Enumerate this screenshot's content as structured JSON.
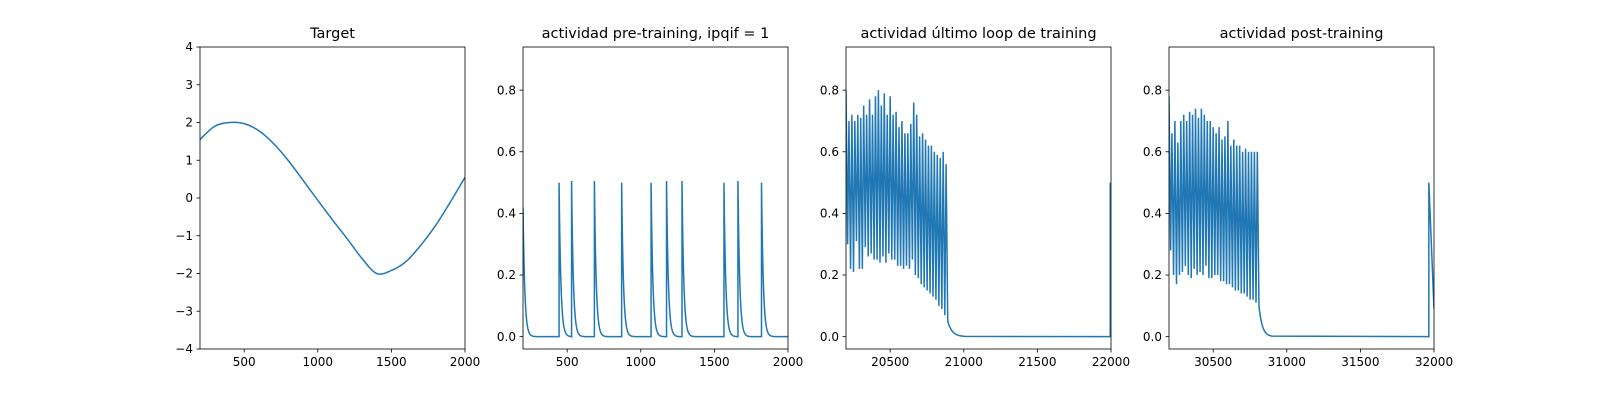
{
  "chart_data": [
    {
      "type": "line",
      "title": "Target",
      "xlabel": "",
      "ylabel": "",
      "xlim": [
        200,
        2000
      ],
      "ylim": [
        -4,
        4
      ],
      "xticks": [
        500,
        1000,
        1500,
        2000
      ],
      "yticks": [
        -4,
        -3,
        -2,
        -1,
        0,
        1,
        2,
        3,
        4
      ],
      "ytick_decimals": 0,
      "color": "#1f77b4",
      "series": [
        {
          "description": "sine wave",
          "x": [
            200,
            300,
            400,
            500,
            600,
            700,
            800,
            900,
            1000,
            1100,
            1200,
            1300,
            1400,
            1500,
            1600,
            1700,
            1800,
            1900,
            2000
          ],
          "y": [
            1.55,
            1.9,
            2.0,
            1.97,
            1.78,
            1.44,
            0.99,
            0.47,
            -0.06,
            -0.58,
            -1.08,
            -1.6,
            -2.0,
            -1.92,
            -1.68,
            -1.25,
            -0.73,
            -0.11,
            0.55
          ]
        }
      ]
    },
    {
      "type": "line",
      "title": "actividad pre-training, ipqif = 1",
      "xlabel": "",
      "ylabel": "",
      "xlim": [
        200,
        2000
      ],
      "ylim": [
        -0.04,
        0.94
      ],
      "xticks": [
        500,
        1000,
        1500,
        2000
      ],
      "yticks": [
        0.0,
        0.2,
        0.4,
        0.6,
        0.8
      ],
      "ytick_decimals": 1,
      "color": "#1f77b4",
      "spike_model": {
        "baseline": 0.0,
        "decay": 12,
        "start": {
          "x": 200,
          "value": 0.42
        },
        "spikes": [
          {
            "x": 445,
            "peak": 0.5
          },
          {
            "x": 530,
            "peak": 0.505
          },
          {
            "x": 685,
            "peak": 0.505
          },
          {
            "x": 870,
            "peak": 0.5
          },
          {
            "x": 1070,
            "peak": 0.5
          },
          {
            "x": 1175,
            "peak": 0.505
          },
          {
            "x": 1280,
            "peak": 0.505
          },
          {
            "x": 1565,
            "peak": 0.5
          },
          {
            "x": 1660,
            "peak": 0.505
          },
          {
            "x": 1820,
            "peak": 0.5
          }
        ]
      }
    },
    {
      "type": "line",
      "title": "actividad último loop de training",
      "xlabel": "",
      "ylabel": "",
      "xlim": [
        20200,
        22000
      ],
      "ylim": [
        -0.04,
        0.94
      ],
      "xticks": [
        20500,
        21000,
        21500,
        22000
      ],
      "yticks": [
        0.0,
        0.2,
        0.4,
        0.6,
        0.8
      ],
      "ytick_decimals": 1,
      "color": "#1f77b4",
      "burst": {
        "start_x": 20200,
        "end_x": 20900,
        "period": 20,
        "peaks": [
          0.8,
          0.7,
          0.72,
          0.7,
          0.72,
          0.71,
          0.75,
          0.72,
          0.77,
          0.72,
          0.78,
          0.8,
          0.75,
          0.79,
          0.72,
          0.78,
          0.72,
          0.73,
          0.68,
          0.7,
          0.66,
          0.66,
          0.69,
          0.76,
          0.72,
          0.65,
          0.66,
          0.64,
          0.62,
          0.62,
          0.6,
          0.59,
          0.58,
          0.6,
          0.56
        ],
        "troughs": [
          0.3,
          0.22,
          0.21,
          0.31,
          0.22,
          0.22,
          0.29,
          0.26,
          0.27,
          0.25,
          0.25,
          0.24,
          0.26,
          0.24,
          0.27,
          0.25,
          0.25,
          0.23,
          0.23,
          0.22,
          0.23,
          0.22,
          0.25,
          0.2,
          0.19,
          0.17,
          0.16,
          0.15,
          0.14,
          0.13,
          0.12,
          0.1,
          0.09,
          0.07,
          0.05
        ],
        "decay_to": 0.0,
        "decay_end_x": 21010,
        "end_spike": {
          "x": 21995,
          "peak": 0.5,
          "after": 0.35
        }
      }
    },
    {
      "type": "line",
      "title": "actividad post-training",
      "xlabel": "",
      "ylabel": "",
      "xlim": [
        30200,
        32000
      ],
      "ylim": [
        -0.04,
        0.94
      ],
      "xticks": [
        30500,
        31000,
        31500,
        32000
      ],
      "yticks": [
        0.0,
        0.2,
        0.4,
        0.6,
        0.8
      ],
      "ytick_decimals": 1,
      "color": "#1f77b4",
      "burst": {
        "start_x": 30200,
        "end_x": 30810,
        "period": 20,
        "peaks": [
          0.78,
          0.66,
          0.7,
          0.63,
          0.7,
          0.72,
          0.7,
          0.73,
          0.72,
          0.74,
          0.71,
          0.74,
          0.72,
          0.7,
          0.7,
          0.68,
          0.66,
          0.68,
          0.64,
          0.65,
          0.7,
          0.62,
          0.64,
          0.62,
          0.62,
          0.6,
          0.61,
          0.6,
          0.6,
          0.6,
          0.6
        ],
        "troughs": [
          0.28,
          0.2,
          0.17,
          0.2,
          0.21,
          0.23,
          0.2,
          0.19,
          0.22,
          0.2,
          0.21,
          0.2,
          0.23,
          0.19,
          0.19,
          0.2,
          0.2,
          0.18,
          0.18,
          0.17,
          0.17,
          0.16,
          0.15,
          0.15,
          0.14,
          0.14,
          0.13,
          0.12,
          0.12,
          0.11,
          0.1
        ],
        "decay_to": 0.0,
        "decay_end_x": 30900,
        "end_spike": {
          "x": 31965,
          "peak": 0.5,
          "after": 0.09
        }
      }
    }
  ]
}
